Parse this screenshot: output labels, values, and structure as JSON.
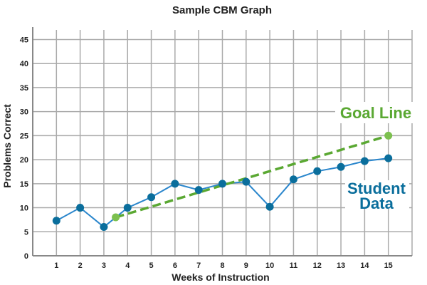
{
  "chart_data": {
    "type": "line",
    "title": "Sample CBM Graph",
    "xlabel": "Weeks of Instruction",
    "ylabel": "Problems Correct",
    "xlim": [
      0,
      16
    ],
    "ylim": [
      0,
      47
    ],
    "x_ticks": [
      1,
      2,
      3,
      4,
      5,
      6,
      7,
      8,
      9,
      10,
      11,
      12,
      13,
      14,
      15
    ],
    "y_ticks": [
      0,
      5,
      10,
      15,
      20,
      25,
      30,
      35,
      40,
      45
    ],
    "grid": true,
    "series": [
      {
        "name": "Student Data",
        "color": "#0a6e9c",
        "line_color": "#2a86cc",
        "x": [
          1,
          2,
          3,
          4,
          5,
          6,
          7,
          8,
          9,
          10,
          11,
          12,
          13,
          14,
          15
        ],
        "y": [
          7.3,
          10,
          6,
          10,
          12.2,
          15,
          13.7,
          15,
          15.4,
          10.2,
          15.9,
          17.6,
          18.5,
          19.7,
          20.3
        ]
      },
      {
        "name": "Goal Line",
        "color": "#5aa832",
        "point_color": "#7cc04f",
        "dashed": true,
        "x": [
          3.5,
          15
        ],
        "y": [
          8,
          25
        ]
      }
    ]
  }
}
